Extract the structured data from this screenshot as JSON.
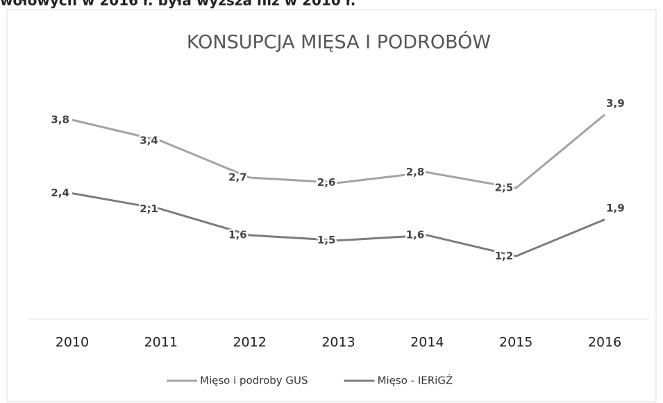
{
  "caption": "wołowych w 2016 r. była wyższa niż w 2010 r.",
  "chart_data": {
    "type": "line",
    "title": "KONSUPCJA MIĘSA I PODROBÓW",
    "categories": [
      "2010",
      "2011",
      "2012",
      "2013",
      "2014",
      "2015",
      "2016"
    ],
    "series": [
      {
        "name": "Mięso i podroby GUS",
        "color": "#a3a3a3",
        "values": [
          3.8,
          3.4,
          2.7,
          2.6,
          2.8,
          2.5,
          3.9
        ],
        "value_labels": [
          "3,8",
          "3,4",
          "2,7",
          "2,6",
          "2,8",
          "2,5",
          "3,9"
        ]
      },
      {
        "name": "Mięso - IERiGŻ",
        "color": "#7c7c7c",
        "values": [
          2.4,
          2.1,
          1.6,
          1.5,
          1.6,
          1.2,
          1.9
        ],
        "value_labels": [
          "2,4",
          "2,1",
          "1,6",
          "1,5",
          "1,6",
          "1,2",
          "1,9"
        ]
      }
    ],
    "ylim": [
      0,
      4.5
    ],
    "legend": "bottom"
  }
}
